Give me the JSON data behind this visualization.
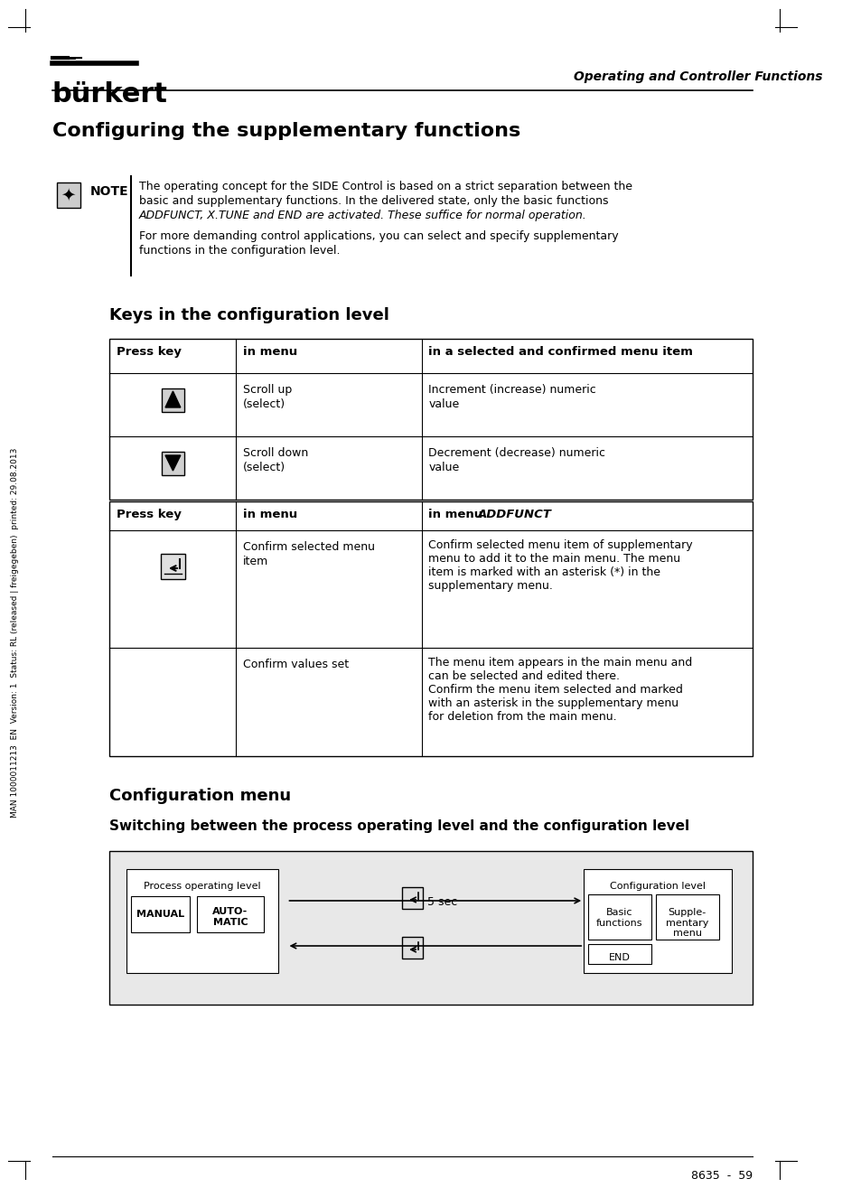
{
  "title_main": "Configuring the supplementary functions",
  "header_right": "Operating and Controller Functions",
  "note_label": "NOTE",
  "note_text1": "The operating concept for the SIDE Control is based on a strict separation between the\nbasic and supplementary functions. In the delivered state, only the basic functions\nADDFUNCT, X.TUNE and END are activated. These suffice for normal operation.",
  "note_text2": "For more demanding control applications, you can select and specify supplementary\nfunctions in the configuration level.",
  "section1_title": "Keys in the configuration level",
  "table1_headers": [
    "Press key",
    "in menu",
    "in a selected and confirmed menu item"
  ],
  "table1_rows": [
    [
      "up_arrow",
      "Scroll up\n(select)",
      "Increment (increase) numeric\nvalue"
    ],
    [
      "down_arrow",
      "Scroll down\n(select)",
      "Decrement (decrease) numeric\nvalue"
    ]
  ],
  "table2_headers": [
    "Press key",
    "in menu",
    "in menu ADDFUNCT"
  ],
  "table2_rows": [
    [
      "enter_key",
      "Confirm selected menu\nitem",
      "Confirm selected menu item of supplementary\nmenu to add it to the main menu. The menu\nitem is marked with an asterisk (*) in the\nsupplementary menu."
    ],
    [
      "",
      "Confirm values set",
      "The menu item appears in the main menu and\ncan be selected and edited there.\nConfirm the menu item selected and marked\nwith an asterisk in the supplementary menu\nfor deletion from the main menu."
    ]
  ],
  "section2_title": "Configuration menu",
  "section2_subtitle": "Switching between the process operating level and the configuration level",
  "sidebar_text": "MAN 1000011213  EN  Version: 1  Status: RL (released | freigegeben)  printed: 29.08.2013",
  "footer_text": "8635  -  59",
  "bg_color": "#ffffff",
  "table_border_color": "#000000",
  "header_bg": "#ffffff",
  "diagram_bg": "#e8e8e8"
}
